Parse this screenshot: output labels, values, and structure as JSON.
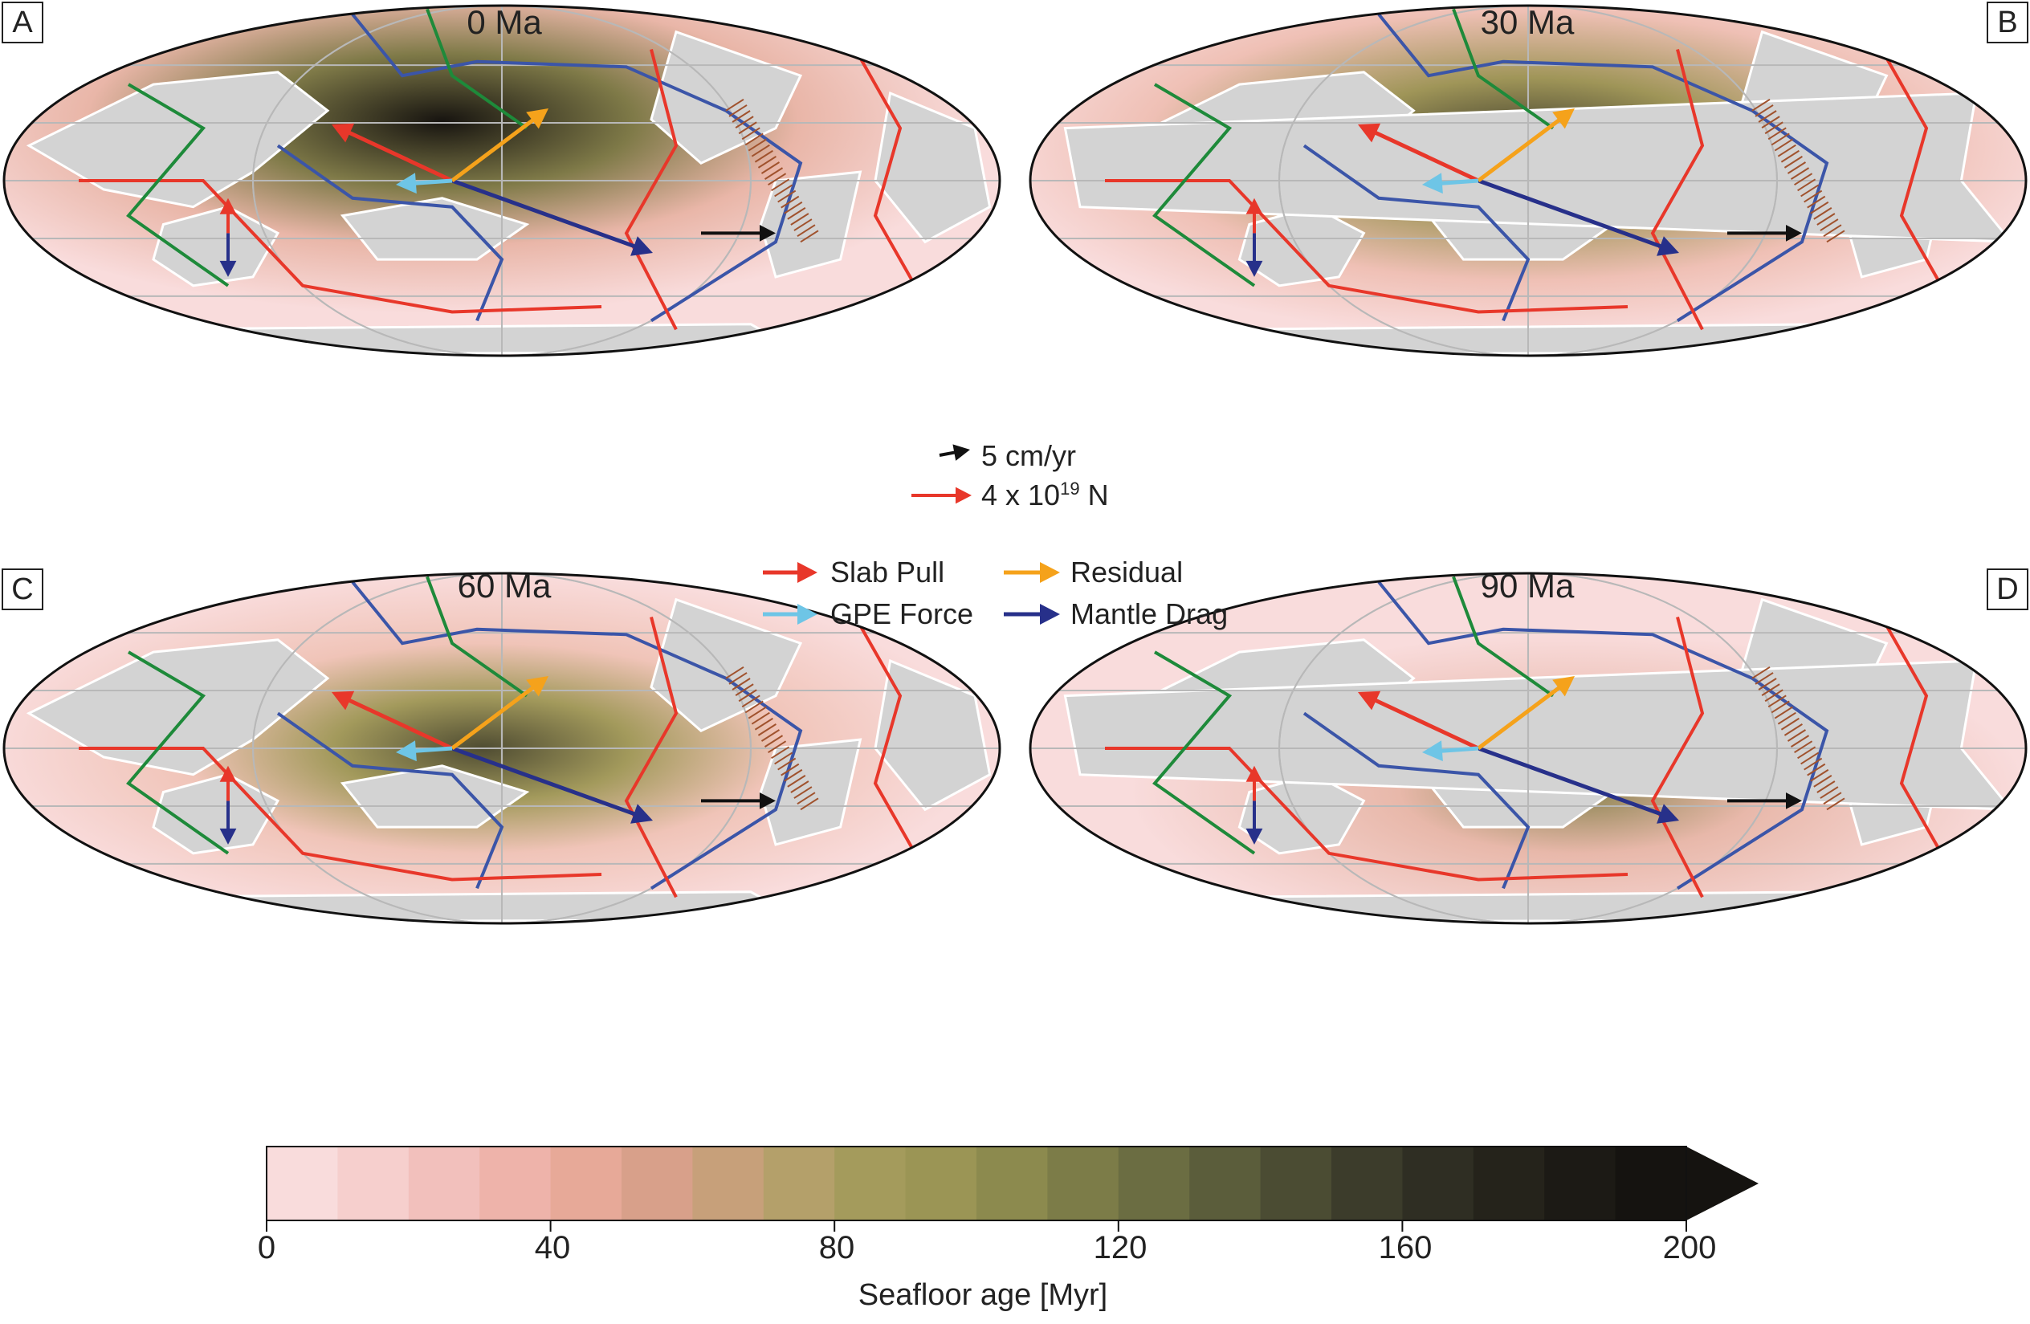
{
  "panels": [
    {
      "id": "A",
      "title": "0 Ma"
    },
    {
      "id": "B",
      "title": "30 Ma"
    },
    {
      "id": "C",
      "title": "60 Ma"
    },
    {
      "id": "D",
      "title": "90 Ma"
    }
  ],
  "scale_legend": {
    "velocity_label": "5 cm/yr",
    "force_label_prefix": "4 x 10",
    "force_label_exp": "19",
    "force_label_unit": " N"
  },
  "force_legend": [
    {
      "label": "Slab Pull",
      "color": "#e8372a"
    },
    {
      "label": "Residual",
      "color": "#f5a21b"
    },
    {
      "label": "GPE Force",
      "color": "#6ec5e6"
    },
    {
      "label": "Mantle Drag",
      "color": "#27308a"
    }
  ],
  "colorbar": {
    "title": "Seafloor age [Myr]",
    "ticks": [
      "0",
      "40",
      "80",
      "120",
      "160",
      "200"
    ],
    "range": [
      0,
      200
    ],
    "step": 10,
    "extend": "max"
  },
  "colors": {
    "land": "#d3d3d3",
    "ocean_young": "#f9dcdc",
    "ocean_mid": "#9f9558",
    "ocean_old": "#171410",
    "ridge": "#e8372a",
    "subduction": "#3b55a8",
    "transform": "#1e8a3a",
    "velocity": "#111111",
    "slab_ticks": "#a0522d"
  }
}
